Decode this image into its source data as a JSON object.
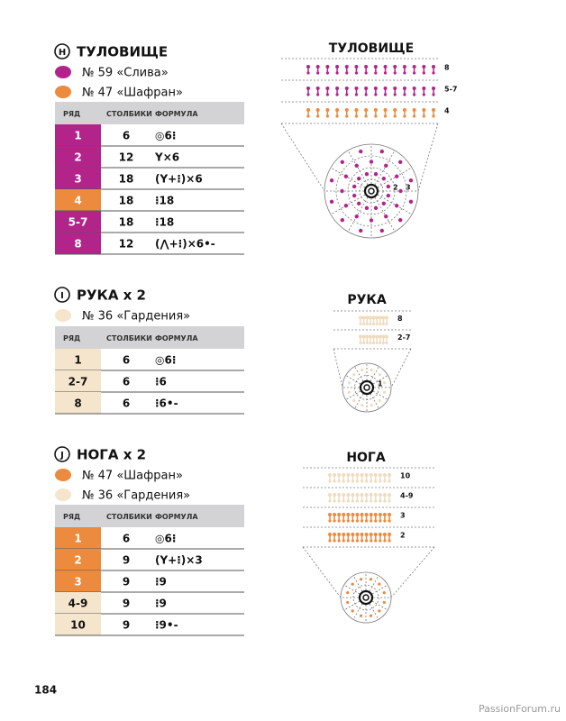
{
  "sections": [
    {
      "badge": "H",
      "title": "ТУЛОВИЩЕ",
      "yarns": [
        {
          "text": "№ 59 «Слива»",
          "color": "#b3248b"
        },
        {
          "text": "№ 47 «Шафран»",
          "color": "#ec8a3d"
        }
      ],
      "table": {
        "header": [
          "РЯД",
          "СТОЛБИКИ",
          "ФОРМУЛА"
        ],
        "rows": [
          {
            "row": "1",
            "stitches": 6,
            "formula": "◎6⁝",
            "color": "#b3248b"
          },
          {
            "row": "2",
            "stitches": 12,
            "formula": "Y×6",
            "color": "#b3248b"
          },
          {
            "row": "3",
            "stitches": 18,
            "formula": "(Y+⁝)×6",
            "color": "#b3248b"
          },
          {
            "row": "4",
            "stitches": 18,
            "formula": "⁝18",
            "color": "#ec8a3d"
          },
          {
            "row": "5-7",
            "stitches": 18,
            "formula": "⁝18",
            "color": "#b3248b"
          },
          {
            "row": "8",
            "stitches": 12,
            "formula": "(⋀+⁝)×6•-",
            "color": "#b3248b"
          }
        ]
      }
    },
    {
      "badge": "I",
      "title": "РУКА x 2",
      "yarns": [
        {
          "text": "№ 36 «Гардения»",
          "color": "#f6e5cd"
        }
      ],
      "table": {
        "header": [
          "РЯД",
          "СТОЛБИКИ",
          "ФОРМУЛА"
        ],
        "rows": [
          {
            "row": "1",
            "stitches": 6,
            "formula": "◎6⁝",
            "color": "#f6e5cd"
          },
          {
            "row": "2-7",
            "stitches": 6,
            "formula": "⁝6",
            "color": "#f6e5cd"
          },
          {
            "row": "8",
            "stitches": 6,
            "formula": "⁝6•-",
            "color": "#f6e5cd"
          }
        ]
      }
    },
    {
      "badge": "J",
      "title": "НОГА x 2",
      "yarns": [
        {
          "text": "№ 47 «Шафран»",
          "color": "#ec8a3d"
        },
        {
          "text": "№ 36 «Гардения»",
          "color": "#f6e5cd"
        }
      ],
      "table": {
        "header": [
          "РЯД",
          "СТОЛБИКИ",
          "ФОРМУЛА"
        ],
        "rows": [
          {
            "row": "1",
            "stitches": 6,
            "formula": "◎6⁝",
            "color": "#ec8a3d"
          },
          {
            "row": "2",
            "stitches": 9,
            "formula": "(Y+⁝)×3",
            "color": "#ec8a3d"
          },
          {
            "row": "3",
            "stitches": 9,
            "formula": "⁝9",
            "color": "#ec8a3d"
          },
          {
            "row": "4-9",
            "stitches": 9,
            "formula": "⁝9",
            "color": "#f6e5cd"
          },
          {
            "row": "10",
            "stitches": 9,
            "formula": "⁝9•-",
            "color": "#f6e5cd"
          }
        ]
      }
    }
  ],
  "diagrams": [
    {
      "title": "ТУЛОВИЩЕ",
      "rows": [
        {
          "label": "8",
          "color": "#b3248b"
        },
        {
          "label": "5-7",
          "color": "#b3248b"
        },
        {
          "label": "4",
          "color": "#ec8a3d"
        }
      ],
      "ring_labels": [
        "2",
        "3"
      ],
      "ring_color": "#b3248b"
    },
    {
      "title": "РУКА",
      "rows": [
        {
          "label": "8",
          "color": "#efdcc0"
        },
        {
          "label": "2-7",
          "color": "#efdcc0"
        }
      ],
      "ring_labels": [
        "1"
      ],
      "ring_color": "#efdcc0"
    },
    {
      "title": "НОГА",
      "rows": [
        {
          "label": "10",
          "color": "#efdcc0"
        },
        {
          "label": "4-9",
          "color": "#efdcc0"
        },
        {
          "label": "3",
          "color": "#ec8a3d"
        },
        {
          "label": "2",
          "color": "#ec8a3d"
        }
      ],
      "ring_labels": [],
      "ring_color": "#ec8a3d"
    }
  ],
  "page_number": "184",
  "watermark": "PassionForum.ru"
}
